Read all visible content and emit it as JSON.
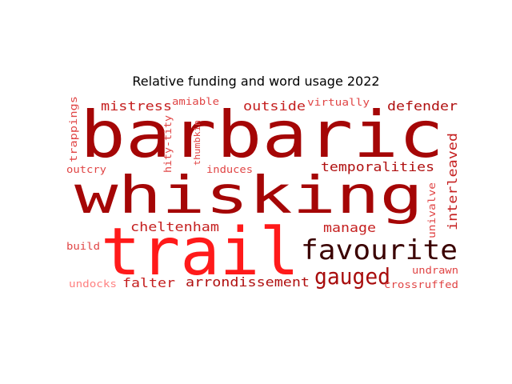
{
  "chart_data": {
    "type": "wordcloud",
    "title": "Relative funding and word usage 2022",
    "words": [
      {
        "text": "barbaric",
        "color": "#a50606"
      },
      {
        "text": "whisking",
        "color": "#a50606"
      },
      {
        "text": "trail",
        "color": "#ff1a1a"
      },
      {
        "text": "favourite",
        "color": "#3a0000"
      },
      {
        "text": "gauged",
        "color": "#a80d0d"
      },
      {
        "text": "mistress",
        "color": "#c52020"
      },
      {
        "text": "outside",
        "color": "#c52020"
      },
      {
        "text": "defender",
        "color": "#b01010"
      },
      {
        "text": "temporalities",
        "color": "#b01010"
      },
      {
        "text": "interleaved",
        "color": "#c52020"
      },
      {
        "text": "cheltenham",
        "color": "#c52020"
      },
      {
        "text": "manage",
        "color": "#c52020"
      },
      {
        "text": "arrondissement",
        "color": "#b01010"
      },
      {
        "text": "falter",
        "color": "#c52020"
      },
      {
        "text": "trappings",
        "color": "#e04545"
      },
      {
        "text": "amiable",
        "color": "#e04545"
      },
      {
        "text": "virtually",
        "color": "#e04545"
      },
      {
        "text": "hity-tity",
        "color": "#e04545"
      },
      {
        "text": "thumbkin",
        "color": "#e04545"
      },
      {
        "text": "induces",
        "color": "#e04545"
      },
      {
        "text": "outcry",
        "color": "#e04545"
      },
      {
        "text": "univalve",
        "color": "#e04545"
      },
      {
        "text": "build",
        "color": "#e04545"
      },
      {
        "text": "undrawn",
        "color": "#e04545"
      },
      {
        "text": "undocks",
        "color": "#ff8080"
      },
      {
        "text": "crossruffed",
        "color": "#e04545"
      }
    ]
  }
}
